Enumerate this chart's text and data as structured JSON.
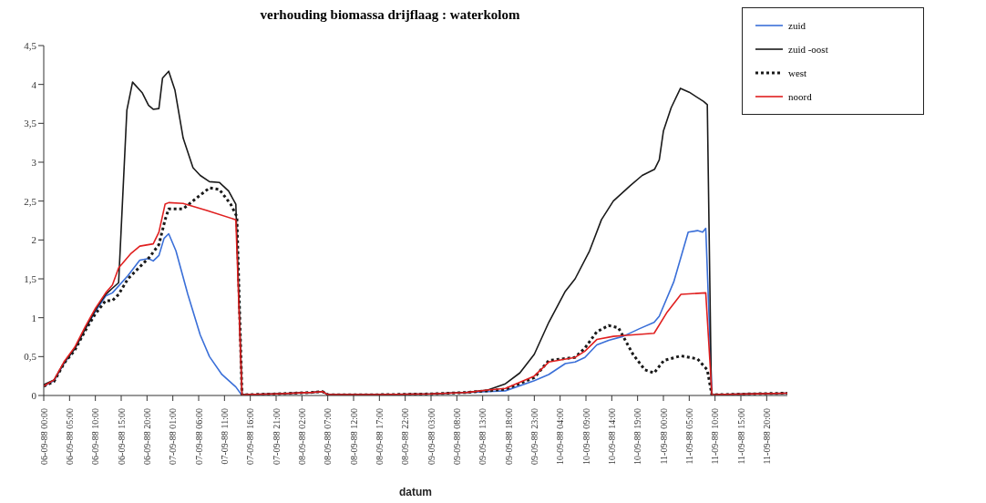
{
  "chart_data": {
    "type": "line",
    "title": "verhouding biomassa drijflaag : waterkolom",
    "xlabel": "datum",
    "legend": "top right",
    "marker": "none",
    "xlim": [
      "1988-09-06T00:00",
      "1988-09-12T00:00"
    ],
    "xticks": [
      {
        "value": "1988-09-06T00:00",
        "label": "06-09-88 00:00"
      },
      {
        "value": "1988-09-06T05:00",
        "label": "06-09-88 05:00"
      },
      {
        "value": "1988-09-06T10:00",
        "label": "06-09-88 10:00"
      },
      {
        "value": "1988-09-06T15:00",
        "label": "06-09-88 15:00"
      },
      {
        "value": "1988-09-06T20:00",
        "label": "06-09-88 20:00"
      },
      {
        "value": "1988-09-07T01:00",
        "label": "07-09-88 01:00"
      },
      {
        "value": "1988-09-07T06:00",
        "label": "07-09-88 06:00"
      },
      {
        "value": "1988-09-07T11:00",
        "label": "07-09-88 11:00"
      },
      {
        "value": "1988-09-07T16:00",
        "label": "07-09-88 16:00"
      },
      {
        "value": "1988-09-07T21:00",
        "label": "07-09-88 21:00"
      },
      {
        "value": "1988-09-08T02:00",
        "label": "08-09-88 02:00"
      },
      {
        "value": "1988-09-08T07:00",
        "label": "08-09-88 07:00"
      },
      {
        "value": "1988-09-08T12:00",
        "label": "08-09-88 12:00"
      },
      {
        "value": "1988-09-08T17:00",
        "label": "08-09-88 17:00"
      },
      {
        "value": "1988-09-08T22:00",
        "label": "08-09-88 22:00"
      },
      {
        "value": "1988-09-09T03:00",
        "label": "09-09-88 03:00"
      },
      {
        "value": "1988-09-09T08:00",
        "label": "09-09-88 08:00"
      },
      {
        "value": "1988-09-09T13:00",
        "label": "09-09-88 13:00"
      },
      {
        "value": "1988-09-09T18:00",
        "label": "09-09-88 18:00"
      },
      {
        "value": "1988-09-09T23:00",
        "label": "09-09-88 23:00"
      },
      {
        "value": "1988-09-10T04:00",
        "label": "10-09-88 04:00"
      },
      {
        "value": "1988-09-10T09:00",
        "label": "10-09-88 09:00"
      },
      {
        "value": "1988-09-10T14:00",
        "label": "10-09-88 14:00"
      },
      {
        "value": "1988-09-10T19:00",
        "label": "10-09-88 19:00"
      },
      {
        "value": "1988-09-11T00:00",
        "label": "11-09-88 00:00"
      },
      {
        "value": "1988-09-11T05:00",
        "label": "11-09-88 05:00"
      },
      {
        "value": "1988-09-11T10:00",
        "label": "11-09-88 10:00"
      },
      {
        "value": "1988-09-11T15:00",
        "label": "11-09-88 15:00"
      },
      {
        "value": "1988-09-11T20:00",
        "label": "11-09-88 20:00"
      }
    ],
    "ylim": [
      0,
      4.5
    ],
    "yticks": [
      0,
      {
        "value": 0.5,
        "label": "0,5"
      },
      1,
      {
        "value": 1.5,
        "label": "1,5"
      },
      2,
      {
        "value": 2.5,
        "label": "2,5"
      },
      3,
      {
        "value": 3.5,
        "label": "3,5"
      },
      4,
      {
        "value": 4.5,
        "label": "4,5"
      }
    ],
    "series": [
      {
        "name": "zuid",
        "color": "#3a6fd8",
        "line_style": "solid",
        "x": [
          "1988-09-06T00:00",
          "1988-09-06T02:00",
          "1988-09-06T04:00",
          "1988-09-06T06:00",
          "1988-09-06T08:00",
          "1988-09-06T10:00",
          "1988-09-06T12:00",
          "1988-09-06T13:18",
          "1988-09-06T16:18",
          "1988-09-06T18:36",
          "1988-09-06T20:18",
          "1988-09-06T21:12",
          "1988-09-06T22:18",
          "1988-09-06T23:18",
          "1988-09-07T00:12",
          "1988-09-07T01:36",
          "1988-09-07T03:54",
          "1988-09-07T06:18",
          "1988-09-07T08:06",
          "1988-09-07T10:30",
          "1988-09-07T13:12",
          "1988-09-07T14:24",
          "1988-09-07T15:00",
          "1988-09-07T21:00",
          "1988-09-08T04:00",
          "1988-09-08T06:00",
          "1988-09-08T07:00",
          "1988-09-08T17:00",
          "1988-09-09T03:00",
          "1988-09-09T10:00",
          "1988-09-09T14:00",
          "1988-09-09T17:24",
          "1988-09-09T23:00",
          "1988-09-10T01:48",
          "1988-09-10T05:00",
          "1988-09-10T06:54",
          "1988-09-10T08:48",
          "1988-09-10T11:06",
          "1988-09-10T13:24",
          "1988-09-10T16:12",
          "1988-09-10T19:24",
          "1988-09-10T22:12",
          "1988-09-10T23:12",
          "1988-09-11T02:00",
          "1988-09-11T04:48",
          "1988-09-11T06:36",
          "1988-09-11T07:36",
          "1988-09-11T08:12",
          "1988-09-11T09:24",
          "1988-09-11T10:00",
          "1988-09-12T00:00"
        ],
        "values": [
          0.12,
          0.19,
          0.42,
          0.6,
          0.85,
          1.08,
          1.28,
          1.32,
          1.54,
          1.74,
          1.76,
          1.73,
          1.8,
          2.02,
          2.08,
          1.86,
          1.3,
          0.78,
          0.5,
          0.27,
          0.11,
          0,
          0.01,
          0.02,
          0.04,
          0.05,
          0.01,
          0.01,
          0.02,
          0.04,
          0.05,
          0.06,
          0.19,
          0.27,
          0.41,
          0.43,
          0.49,
          0.65,
          0.71,
          0.76,
          0.86,
          0.94,
          1.02,
          1.46,
          2.1,
          2.12,
          2.1,
          2.15,
          0,
          0.01,
          0.03
        ]
      },
      {
        "name": "zuid -oost",
        "color": "#1a1a1a",
        "line_style": "solid",
        "x": [
          "1988-09-06T00:00",
          "1988-09-06T02:00",
          "1988-09-06T04:00",
          "1988-09-06T06:00",
          "1988-09-06T08:00",
          "1988-09-06T10:00",
          "1988-09-06T12:00",
          "1988-09-06T13:18",
          "1988-09-06T14:30",
          "1988-09-06T16:06",
          "1988-09-06T17:12",
          "1988-09-06T19:06",
          "1988-09-06T20:18",
          "1988-09-06T21:12",
          "1988-09-06T22:18",
          "1988-09-06T23:00",
          "1988-09-07T00:12",
          "1988-09-07T01:24",
          "1988-09-07T03:00",
          "1988-09-07T04:54",
          "1988-09-07T06:18",
          "1988-09-07T08:06",
          "1988-09-07T10:00",
          "1988-09-07T11:48",
          "1988-09-07T13:12",
          "1988-09-07T14:24",
          "1988-09-07T15:00",
          "1988-09-07T21:00",
          "1988-09-08T04:00",
          "1988-09-08T06:00",
          "1988-09-08T07:00",
          "1988-09-08T17:00",
          "1988-09-09T03:00",
          "1988-09-09T10:00",
          "1988-09-09T14:00",
          "1988-09-09T17:24",
          "1988-09-09T20:12",
          "1988-09-09T23:00",
          "1988-09-10T01:48",
          "1988-09-10T05:00",
          "1988-09-10T06:54",
          "1988-09-10T09:42",
          "1988-09-10T12:00",
          "1988-09-10T14:18",
          "1988-09-10T17:36",
          "1988-09-10T19:54",
          "1988-09-10T22:18",
          "1988-09-10T23:12",
          "1988-09-11T00:00",
          "1988-09-11T01:30",
          "1988-09-11T03:18",
          "1988-09-11T05:00",
          "1988-09-11T07:48",
          "1988-09-11T08:30",
          "1988-09-11T09:18",
          "1988-09-11T10:00",
          "1988-09-12T00:00"
        ],
        "values": [
          0.14,
          0.2,
          0.43,
          0.6,
          0.85,
          1.1,
          1.3,
          1.38,
          1.45,
          3.67,
          4.03,
          3.89,
          3.73,
          3.68,
          3.69,
          4.08,
          4.17,
          3.93,
          3.31,
          2.93,
          2.83,
          2.75,
          2.74,
          2.63,
          2.46,
          0.01,
          0.01,
          0.02,
          0.04,
          0.05,
          0.01,
          0.01,
          0.02,
          0.04,
          0.07,
          0.15,
          0.29,
          0.53,
          0.94,
          1.34,
          1.5,
          1.86,
          2.26,
          2.5,
          2.7,
          2.83,
          2.91,
          3.03,
          3.4,
          3.7,
          3.95,
          3.9,
          3.78,
          3.74,
          0,
          0.01,
          0.03
        ]
      },
      {
        "name": "west",
        "color": "#1a1a1a",
        "line_style": "dotted",
        "x": [
          "1988-09-06T00:00",
          "1988-09-06T02:00",
          "1988-09-06T04:00",
          "1988-09-06T06:00",
          "1988-09-06T08:00",
          "1988-09-06T10:00",
          "1988-09-06T12:00",
          "1988-09-06T13:18",
          "1988-09-06T14:30",
          "1988-09-06T16:18",
          "1988-09-06T20:30",
          "1988-09-06T22:18",
          "1988-09-06T23:30",
          "1988-09-07T00:12",
          "1988-09-07T03:00",
          "1988-09-07T05:48",
          "1988-09-07T08:06",
          "1988-09-07T10:00",
          "1988-09-07T12:12",
          "1988-09-07T13:24",
          "1988-09-07T14:24",
          "1988-09-07T15:00",
          "1988-09-07T21:00",
          "1988-09-08T04:00",
          "1988-09-08T06:00",
          "1988-09-08T07:00",
          "1988-09-08T17:00",
          "1988-09-09T03:00",
          "1988-09-09T10:00",
          "1988-09-09T14:00",
          "1988-09-09T17:24",
          "1988-09-09T23:00",
          "1988-09-10T01:48",
          "1988-09-10T06:54",
          "1988-09-10T08:48",
          "1988-09-10T11:06",
          "1988-09-10T13:24",
          "1988-09-10T15:18",
          "1988-09-10T18:06",
          "1988-09-10T20:24",
          "1988-09-10T22:12",
          "1988-09-11T00:06",
          "1988-09-11T03:24",
          "1988-09-11T06:36",
          "1988-09-11T08:30",
          "1988-09-11T09:24",
          "1988-09-11T10:00",
          "1988-09-12T00:00"
        ],
        "values": [
          0.12,
          0.18,
          0.42,
          0.58,
          0.83,
          1.05,
          1.22,
          1.22,
          1.3,
          1.5,
          1.78,
          1.94,
          2.26,
          2.4,
          2.4,
          2.55,
          2.67,
          2.65,
          2.46,
          2.3,
          0,
          0.01,
          0.02,
          0.04,
          0.05,
          0.01,
          0.01,
          0.02,
          0.04,
          0.06,
          0.08,
          0.23,
          0.45,
          0.49,
          0.61,
          0.82,
          0.9,
          0.87,
          0.53,
          0.33,
          0.29,
          0.45,
          0.51,
          0.47,
          0.33,
          0,
          0.01,
          0.03
        ]
      },
      {
        "name": "noord",
        "color": "#e02020",
        "line_style": "solid",
        "x": [
          "1988-09-06T00:00",
          "1988-09-06T02:00",
          "1988-09-06T04:00",
          "1988-09-06T06:00",
          "1988-09-06T08:00",
          "1988-09-06T10:00",
          "1988-09-06T12:00",
          "1988-09-06T13:18",
          "1988-09-06T14:30",
          "1988-09-06T16:48",
          "1988-09-06T18:36",
          "1988-09-06T21:12",
          "1988-09-06T22:18",
          "1988-09-06T23:30",
          "1988-09-07T00:12",
          "1988-09-07T03:00",
          "1988-09-07T07:36",
          "1988-09-07T13:12",
          "1988-09-07T14:24",
          "1988-09-07T15:00",
          "1988-09-07T21:00",
          "1988-09-08T04:00",
          "1988-09-08T06:00",
          "1988-09-08T07:00",
          "1988-09-08T17:00",
          "1988-09-09T03:00",
          "1988-09-09T10:00",
          "1988-09-09T14:00",
          "1988-09-09T17:24",
          "1988-09-09T20:12",
          "1988-09-09T23:00",
          "1988-09-10T01:48",
          "1988-09-10T06:54",
          "1988-09-10T08:48",
          "1988-09-10T11:06",
          "1988-09-10T14:18",
          "1988-09-10T16:12",
          "1988-09-10T22:12",
          "1988-09-11T00:36",
          "1988-09-11T03:24",
          "1988-09-11T08:12",
          "1988-09-11T09:24",
          "1988-09-11T10:00",
          "1988-09-12T00:00"
        ],
        "values": [
          0.12,
          0.2,
          0.44,
          0.62,
          0.88,
          1.12,
          1.32,
          1.42,
          1.64,
          1.82,
          1.92,
          1.95,
          2.1,
          2.46,
          2.48,
          2.47,
          2.38,
          2.26,
          0,
          0.01,
          0.02,
          0.04,
          0.05,
          0.01,
          0.01,
          0.02,
          0.04,
          0.07,
          0.09,
          0.17,
          0.25,
          0.43,
          0.49,
          0.57,
          0.72,
          0.76,
          0.77,
          0.8,
          1.06,
          1.3,
          1.32,
          0,
          0.01,
          0.03
        ]
      }
    ]
  }
}
